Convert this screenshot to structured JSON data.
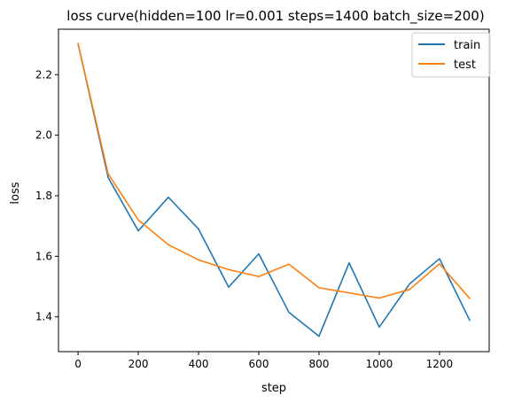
{
  "chart_data": {
    "type": "line",
    "title": "loss curve(hidden=100 lr=0.001 steps=1400 batch_size=200)",
    "xlabel": "step",
    "ylabel": "loss",
    "x": [
      0,
      100,
      200,
      300,
      400,
      500,
      600,
      700,
      800,
      900,
      1000,
      1100,
      1200,
      1300
    ],
    "xlim": [
      -65,
      1365
    ],
    "ylim": [
      1.285,
      2.35
    ],
    "xticks": [
      0,
      200,
      400,
      600,
      800,
      1000,
      1200
    ],
    "yticks": [
      1.4,
      1.6,
      1.8,
      2.0,
      2.2
    ],
    "ytick_labels": [
      "1.4",
      "1.6",
      "1.8",
      "2.0",
      "2.2"
    ],
    "grid": false,
    "legend_position": "top-right",
    "series": [
      {
        "name": "train",
        "color": "#1f77b4",
        "values": [
          2.302,
          1.86,
          1.684,
          1.795,
          1.69,
          1.498,
          1.608,
          1.415,
          1.336,
          1.578,
          1.366,
          1.508,
          1.592,
          1.389
        ]
      },
      {
        "name": "test",
        "color": "#ff7f0e",
        "values": [
          2.302,
          1.872,
          1.72,
          1.638,
          1.588,
          1.556,
          1.533,
          1.574,
          1.496,
          1.479,
          1.462,
          1.49,
          1.575,
          1.461
        ]
      }
    ]
  }
}
